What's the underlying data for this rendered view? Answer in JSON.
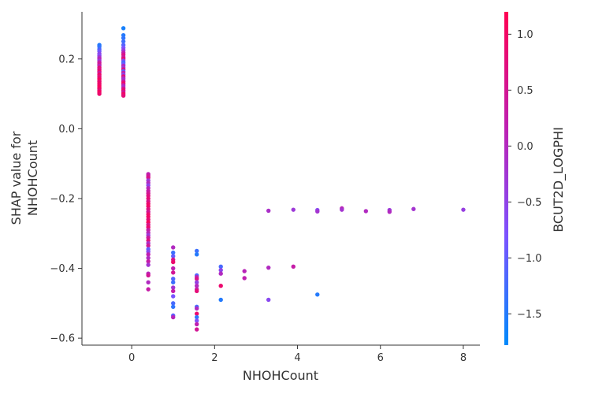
{
  "chart_data": {
    "type": "scatter",
    "title": "",
    "xlabel": "NHOHCount",
    "ylabel": [
      "SHAP value for",
      "NHOHCount"
    ],
    "xlim": [
      -1.2,
      8.4
    ],
    "ylim": [
      -0.62,
      0.335
    ],
    "xticks": [
      0,
      2,
      4,
      6,
      8
    ],
    "xtick_labels": [
      "0",
      "2",
      "4",
      "6",
      "8"
    ],
    "yticks": [
      -0.6,
      -0.4,
      -0.2,
      0.0,
      0.2
    ],
    "ytick_labels": [
      "−0.6",
      "−0.4",
      "−0.2",
      "0.0",
      "0.2"
    ],
    "grid": false,
    "colorbar": {
      "label": "BCUT2D_LOGPHI",
      "range": [
        -1.78,
        1.2
      ],
      "ticks": [
        1.0,
        0.5,
        0.0,
        -0.5,
        -1.0,
        -1.5
      ],
      "tick_labels": [
        "1.0",
        "0.5",
        "0.0",
        "−0.5",
        "−1.0",
        "−1.5"
      ],
      "colors": [
        "#008afb",
        "#7c52ff",
        "#bf1fb0",
        "#ff0052"
      ]
    },
    "series": [
      {
        "points": [
          [
            -0.78,
            0.24,
            -1.5
          ],
          [
            -0.78,
            0.235,
            -1.4
          ],
          [
            -0.78,
            0.228,
            -1.2
          ],
          [
            -0.78,
            0.222,
            -0.9
          ],
          [
            -0.78,
            0.215,
            -0.5
          ],
          [
            -0.78,
            0.21,
            -0.7
          ],
          [
            -0.78,
            0.205,
            -0.2
          ],
          [
            -0.78,
            0.2,
            0.1
          ],
          [
            -0.78,
            0.195,
            -0.3
          ],
          [
            -0.78,
            0.19,
            0.3
          ],
          [
            -0.78,
            0.185,
            0.5
          ],
          [
            -0.78,
            0.18,
            0.0
          ],
          [
            -0.78,
            0.175,
            0.8
          ],
          [
            -0.78,
            0.17,
            0.6
          ],
          [
            -0.78,
            0.165,
            0.9
          ],
          [
            -0.78,
            0.16,
            0.4
          ],
          [
            -0.78,
            0.155,
            1.0
          ],
          [
            -0.78,
            0.15,
            0.7
          ],
          [
            -0.78,
            0.145,
            0.9
          ],
          [
            -0.78,
            0.14,
            1.1
          ],
          [
            -0.78,
            0.135,
            0.8
          ],
          [
            -0.78,
            0.13,
            1.0
          ],
          [
            -0.78,
            0.125,
            0.9
          ],
          [
            -0.78,
            0.12,
            1.1
          ],
          [
            -0.78,
            0.115,
            1.0
          ],
          [
            -0.78,
            0.11,
            0.8
          ],
          [
            -0.78,
            0.105,
            1.1
          ],
          [
            -0.78,
            0.1,
            0.9
          ],
          [
            -0.2,
            0.288,
            -1.6
          ],
          [
            -0.2,
            0.268,
            -1.5
          ],
          [
            -0.2,
            0.26,
            -1.4
          ],
          [
            -0.2,
            0.25,
            -1.3
          ],
          [
            -0.2,
            0.24,
            -1.1
          ],
          [
            -0.2,
            0.232,
            -0.8
          ],
          [
            -0.2,
            0.225,
            -0.4
          ],
          [
            -0.2,
            0.218,
            0.2
          ],
          [
            -0.2,
            0.212,
            0.6
          ],
          [
            -0.2,
            0.205,
            0.4
          ],
          [
            -0.2,
            0.2,
            0.9
          ],
          [
            -0.2,
            0.195,
            -0.6
          ],
          [
            -0.2,
            0.19,
            -1.2
          ],
          [
            -0.2,
            0.185,
            -0.9
          ],
          [
            -0.2,
            0.18,
            0.1
          ],
          [
            -0.2,
            0.175,
            -0.3
          ],
          [
            -0.2,
            0.17,
            0.7
          ],
          [
            -0.2,
            0.165,
            -1.0
          ],
          [
            -0.2,
            0.16,
            0.3
          ],
          [
            -0.2,
            0.155,
            -0.5
          ],
          [
            -0.2,
            0.15,
            0.8
          ],
          [
            -0.2,
            0.145,
            0.0
          ],
          [
            -0.2,
            0.14,
            -0.2
          ],
          [
            -0.2,
            0.135,
            0.5
          ],
          [
            -0.2,
            0.13,
            1.0
          ],
          [
            -0.2,
            0.125,
            0.2
          ],
          [
            -0.2,
            0.12,
            -0.1
          ],
          [
            -0.2,
            0.115,
            0.6
          ],
          [
            -0.2,
            0.11,
            0.9
          ],
          [
            -0.2,
            0.105,
            0.4
          ],
          [
            -0.2,
            0.1,
            1.0
          ],
          [
            -0.2,
            0.095,
            0.8
          ],
          [
            0.4,
            -0.13,
            0.2
          ],
          [
            0.4,
            -0.135,
            0.4
          ],
          [
            0.4,
            -0.14,
            0.6
          ],
          [
            0.4,
            -0.148,
            -0.3
          ],
          [
            0.4,
            -0.155,
            0.0
          ],
          [
            0.4,
            -0.162,
            -0.5
          ],
          [
            0.4,
            -0.17,
            0.1
          ],
          [
            0.4,
            -0.178,
            0.3
          ],
          [
            0.4,
            -0.185,
            0.5
          ],
          [
            0.4,
            -0.192,
            0.7
          ],
          [
            0.4,
            -0.2,
            0.8
          ],
          [
            0.4,
            -0.208,
            0.6
          ],
          [
            0.4,
            -0.215,
            0.9
          ],
          [
            0.4,
            -0.222,
            1.0
          ],
          [
            0.4,
            -0.23,
            0.7
          ],
          [
            0.4,
            -0.238,
            0.5
          ],
          [
            0.4,
            -0.245,
            0.9
          ],
          [
            0.4,
            -0.252,
            1.0
          ],
          [
            0.4,
            -0.26,
            0.8
          ],
          [
            0.4,
            -0.268,
            1.1
          ],
          [
            0.4,
            -0.275,
            0.6
          ],
          [
            0.4,
            -0.282,
            0.9
          ],
          [
            0.4,
            -0.29,
            0.3
          ],
          [
            0.4,
            -0.298,
            0.1
          ],
          [
            0.4,
            -0.305,
            -0.3
          ],
          [
            0.4,
            -0.312,
            0.4
          ],
          [
            0.4,
            -0.32,
            0.7
          ],
          [
            0.4,
            -0.328,
            -0.1
          ],
          [
            0.4,
            -0.335,
            0.5
          ],
          [
            0.4,
            -0.345,
            -1.0
          ],
          [
            0.4,
            -0.352,
            -0.6
          ],
          [
            0.4,
            -0.36,
            0.2
          ],
          [
            0.4,
            -0.37,
            0.0
          ],
          [
            0.4,
            -0.38,
            0.3
          ],
          [
            0.4,
            -0.39,
            -0.2
          ],
          [
            0.4,
            -0.415,
            0.1
          ],
          [
            0.4,
            -0.42,
            0.5
          ],
          [
            0.4,
            -0.44,
            0.0
          ],
          [
            0.4,
            -0.46,
            0.3
          ],
          [
            1.0,
            -0.34,
            0.0
          ],
          [
            1.0,
            -0.355,
            -1.3
          ],
          [
            1.0,
            -0.365,
            -1.0
          ],
          [
            1.0,
            -0.375,
            0.6
          ],
          [
            1.0,
            -0.382,
            0.9
          ],
          [
            1.0,
            -0.4,
            0.2
          ],
          [
            1.0,
            -0.412,
            0.5
          ],
          [
            1.0,
            -0.43,
            -1.1
          ],
          [
            1.0,
            -0.44,
            -1.3
          ],
          [
            1.0,
            -0.455,
            -0.2
          ],
          [
            1.0,
            -0.465,
            0.3
          ],
          [
            1.0,
            -0.48,
            -0.8
          ],
          [
            1.0,
            -0.5,
            -1.2
          ],
          [
            1.0,
            -0.51,
            -1.4
          ],
          [
            1.0,
            -0.535,
            -1.0
          ],
          [
            1.0,
            -0.54,
            0.1
          ],
          [
            1.57,
            -0.35,
            -1.3
          ],
          [
            1.57,
            -0.36,
            -1.5
          ],
          [
            1.57,
            -0.42,
            -1.1
          ],
          [
            1.57,
            -0.425,
            0.1
          ],
          [
            1.57,
            -0.43,
            0.6
          ],
          [
            1.57,
            -0.44,
            -0.4
          ],
          [
            1.57,
            -0.45,
            0.0
          ],
          [
            1.57,
            -0.46,
            0.3
          ],
          [
            1.57,
            -0.465,
            0.8
          ],
          [
            1.57,
            -0.51,
            -1.2
          ],
          [
            1.57,
            -0.515,
            0.0
          ],
          [
            1.57,
            -0.53,
            0.9
          ],
          [
            1.57,
            -0.54,
            -1.4
          ],
          [
            1.57,
            -0.55,
            -0.7
          ],
          [
            1.57,
            -0.56,
            0.2
          ],
          [
            1.57,
            -0.575,
            0.5
          ],
          [
            2.15,
            -0.395,
            -1.2
          ],
          [
            2.15,
            -0.405,
            -0.5
          ],
          [
            2.15,
            -0.415,
            0.0
          ],
          [
            2.15,
            -0.45,
            0.9
          ],
          [
            2.15,
            -0.49,
            -1.5
          ],
          [
            2.72,
            -0.408,
            0.1
          ],
          [
            2.72,
            -0.428,
            0.2
          ],
          [
            3.3,
            -0.235,
            -0.1
          ],
          [
            3.3,
            -0.398,
            0.0
          ],
          [
            3.3,
            -0.49,
            -0.6
          ],
          [
            3.9,
            -0.232,
            -0.3
          ],
          [
            3.9,
            -0.395,
            0.3
          ],
          [
            4.48,
            -0.233,
            -0.6
          ],
          [
            4.48,
            -0.237,
            -0.2
          ],
          [
            4.48,
            -0.475,
            -1.5
          ],
          [
            5.07,
            -0.228,
            0.1
          ],
          [
            5.07,
            -0.232,
            -0.2
          ],
          [
            5.65,
            -0.236,
            0.0
          ],
          [
            6.22,
            -0.233,
            -0.3
          ],
          [
            6.22,
            -0.238,
            0.0
          ],
          [
            6.8,
            -0.23,
            -0.2
          ],
          [
            8.0,
            -0.232,
            -0.4
          ]
        ]
      }
    ]
  }
}
